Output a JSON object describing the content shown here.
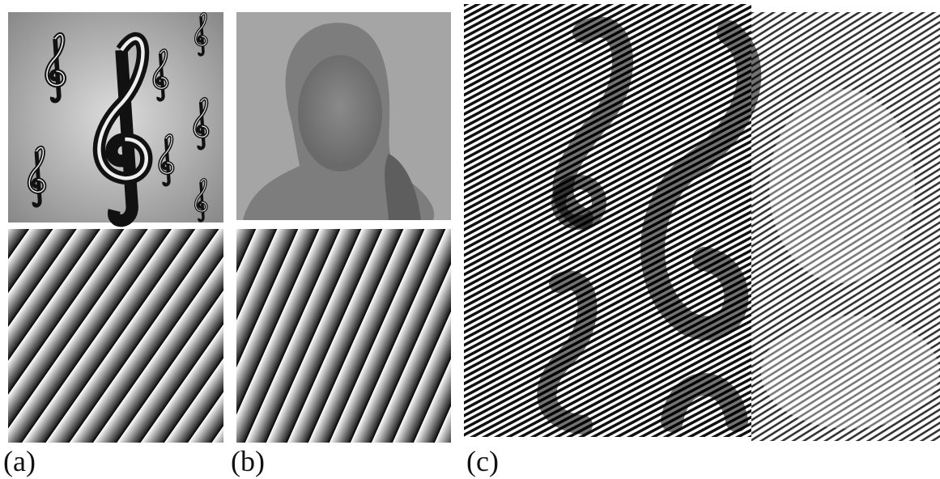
{
  "labels": {
    "a": "(a)",
    "b": "(b)",
    "c": "(c)"
  }
}
